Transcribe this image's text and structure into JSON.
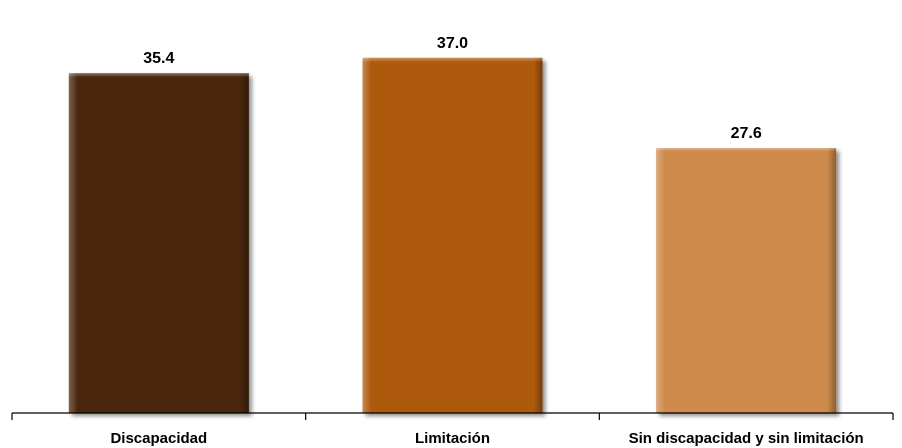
{
  "chart_data": {
    "type": "bar",
    "categories": [
      "Discapacidad",
      "Limitación",
      "Sin discapacidad y sin limitación"
    ],
    "values": [
      35.4,
      37.0,
      27.6
    ],
    "value_labels": [
      "35.4",
      "37.0",
      "27.6"
    ],
    "colors": [
      "#4a2808",
      "#ae5a0a",
      "#cd8a4c"
    ],
    "ylim": [
      0,
      40
    ],
    "grid": false,
    "legend": "none"
  }
}
